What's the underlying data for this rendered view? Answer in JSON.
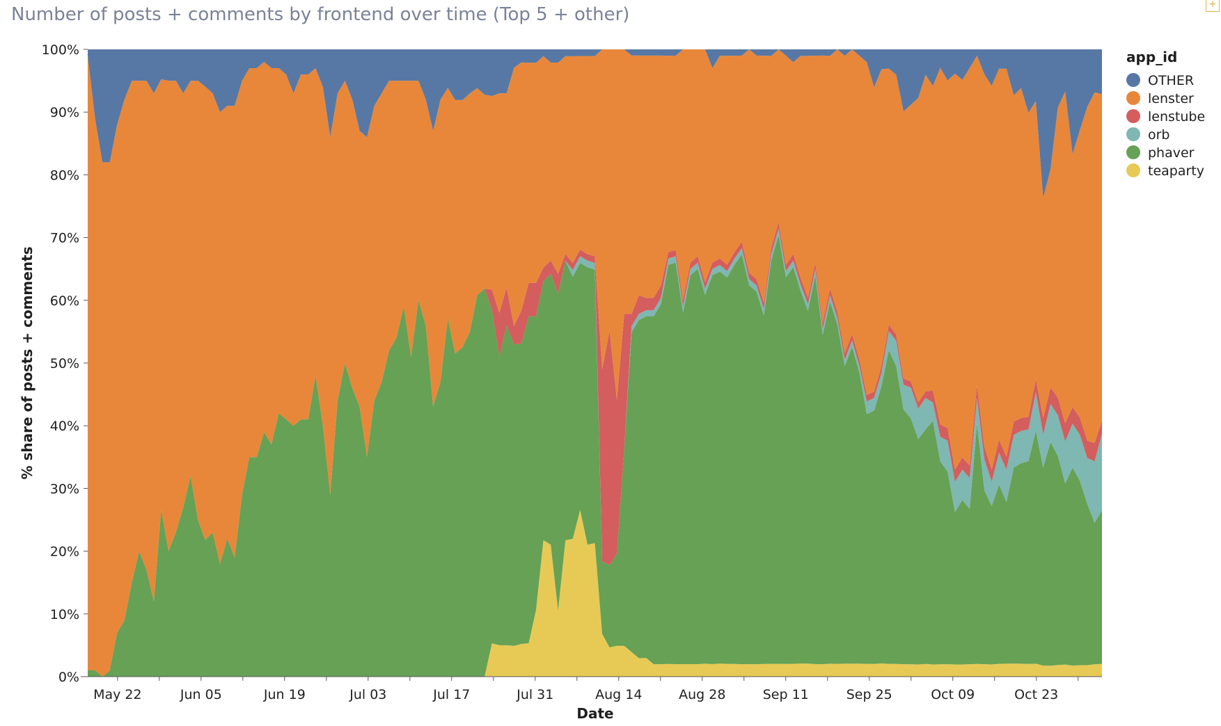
{
  "chart_data": {
    "type": "area",
    "stacked": true,
    "normalized": true,
    "title": "Number of posts + comments by frontend over time (Top 5 + other)",
    "xlabel": "Date",
    "ylabel": "% share of posts + comments",
    "ylim": [
      0,
      100
    ],
    "y_ticks": [
      "0%",
      "10%",
      "20%",
      "30%",
      "40%",
      "50%",
      "60%",
      "70%",
      "80%",
      "90%",
      "100%"
    ],
    "x_tick_labels": [
      "May 22",
      "Jun 05",
      "Jun 19",
      "Jul 03",
      "Jul 17",
      "Jul 31",
      "Aug 14",
      "Aug 28",
      "Sep 11",
      "Sep 25",
      "Oct 09",
      "Oct 23"
    ],
    "x_tick_dates": [
      "2023-05-22",
      "2023-06-05",
      "2023-06-19",
      "2023-07-03",
      "2023-07-17",
      "2023-07-31",
      "2023-08-14",
      "2023-08-28",
      "2023-09-11",
      "2023-09-25",
      "2023-10-09",
      "2023-10-23"
    ],
    "x_start": "2023-05-17",
    "x_end": "2023-11-03",
    "legend_title": "app_id",
    "legend_position": "right",
    "grid": false,
    "stack_order_bottom_to_top": [
      "teaparty",
      "phaver",
      "orb",
      "lenstube",
      "lenster",
      "OTHER"
    ],
    "series": [
      {
        "name": "OTHER",
        "color": "#5778a4",
        "values": [
          1,
          11,
          18,
          18,
          12,
          8,
          5,
          5,
          5,
          7,
          5,
          5,
          5,
          7,
          5,
          5,
          6,
          7,
          10,
          9,
          9,
          5,
          3,
          3,
          2,
          3,
          3,
          4,
          7,
          4,
          4,
          3,
          6,
          14,
          7,
          5,
          8,
          13,
          14,
          9,
          7,
          5,
          5,
          5,
          5,
          5,
          8,
          13,
          8,
          6,
          8,
          8,
          7,
          6,
          7,
          7,
          7,
          7,
          3,
          2,
          2,
          2,
          1,
          2,
          2,
          1,
          1,
          1,
          1,
          1,
          0,
          0,
          0,
          0,
          1,
          1,
          1,
          1,
          1,
          1,
          1,
          0,
          0,
          0,
          0,
          3,
          1,
          1,
          1,
          1,
          0,
          1,
          1,
          1,
          0,
          1,
          2,
          1,
          1,
          1,
          1,
          1,
          0,
          1,
          0,
          1,
          2,
          6,
          3,
          3,
          4,
          10,
          9,
          8,
          4,
          6,
          3,
          5,
          4,
          5,
          3,
          1,
          4,
          6,
          3,
          3,
          7,
          6,
          10,
          8,
          27,
          22,
          10,
          7,
          19,
          14,
          10,
          7,
          7
        ]
      },
      {
        "name": "lenster",
        "color": "#e8873a",
        "values": [
          98,
          88,
          82,
          81,
          81,
          83,
          80,
          75,
          78,
          81,
          72,
          75,
          72,
          66,
          63,
          70,
          73,
          70,
          72,
          69,
          72,
          66,
          62,
          62,
          59,
          60,
          55,
          55,
          53,
          55,
          55,
          49,
          54,
          57,
          49,
          45,
          46,
          44,
          51,
          47,
          46,
          43,
          41,
          36,
          44,
          35,
          36,
          44,
          45,
          36,
          40,
          39,
          38,
          32,
          30,
          29,
          35,
          31,
          42,
          38,
          33,
          33,
          31,
          30,
          32,
          29,
          30,
          29,
          30,
          30,
          75,
          48,
          57,
          43,
          42,
          39,
          39,
          39,
          37,
          31,
          31,
          40,
          34,
          33,
          36,
          31,
          31,
          33,
          31,
          30,
          36,
          36,
          39,
          30,
          27,
          33,
          30,
          34,
          37,
          33,
          43,
          36,
          41,
          46,
          44,
          47,
          52,
          48,
          45,
          40,
          41,
          43,
          45,
          50,
          50,
          50,
          58,
          56,
          65,
          62,
          64,
          52,
          60,
          63,
          58,
          60,
          50,
          51,
          48,
          43,
          40,
          40,
          50,
          55,
          46,
          50,
          58,
          57,
          51
        ]
      },
      {
        "name": "lenstube",
        "color": "#d45d5d",
        "values": [
          0,
          0,
          0,
          0,
          0,
          0,
          0,
          0,
          0,
          0,
          0,
          0,
          0,
          0,
          0,
          0,
          0,
          0,
          0,
          0,
          0,
          0,
          0,
          0,
          0,
          0,
          0,
          0,
          0,
          0,
          0,
          0,
          0,
          0,
          0,
          0,
          0,
          0,
          0,
          0,
          0,
          0,
          0,
          0,
          0,
          0,
          0,
          0,
          0,
          0,
          0,
          0,
          0,
          0,
          0,
          3,
          7,
          6,
          3,
          5,
          5,
          5,
          2,
          2,
          3,
          1,
          1,
          1,
          1,
          1,
          45,
          40,
          25,
          22,
          2,
          3,
          2,
          2,
          2,
          1,
          1,
          1,
          1,
          1,
          1,
          1,
          1,
          1,
          1,
          1,
          1,
          1,
          1,
          1,
          1,
          1,
          1,
          1,
          1,
          1,
          1,
          1,
          1,
          1,
          1,
          1,
          1,
          1,
          1,
          1,
          1,
          1,
          1,
          1,
          1,
          2,
          2,
          2,
          2,
          2,
          2,
          2,
          2,
          2,
          2,
          2,
          2,
          2,
          2,
          2,
          3,
          3,
          3,
          3,
          3,
          3,
          3,
          3,
          2
        ]
      },
      {
        "name": "orb",
        "color": "#7fb7b2",
        "values": [
          0,
          0,
          0,
          0,
          0,
          0,
          0,
          0,
          0,
          0,
          0,
          0,
          0,
          0,
          0,
          0,
          0,
          0,
          0,
          0,
          0,
          0,
          0,
          0,
          0,
          0,
          0,
          0,
          0,
          0,
          0,
          0,
          0,
          0,
          0,
          0,
          0,
          0,
          0,
          0,
          0,
          0,
          0,
          0,
          0,
          0,
          0,
          0,
          0,
          0,
          0,
          0,
          0,
          0,
          0,
          0,
          0,
          0,
          0,
          0,
          0,
          0,
          0,
          0,
          0,
          0,
          1,
          1,
          1,
          1,
          0,
          0,
          0,
          0,
          1,
          1,
          1,
          1,
          1,
          1,
          1,
          1,
          1,
          1,
          1,
          1,
          1,
          1,
          1,
          1,
          1,
          1,
          1,
          1,
          1,
          1,
          1,
          1,
          1,
          1,
          1,
          1,
          1,
          1,
          1,
          1,
          2,
          2,
          2,
          3,
          4,
          4,
          5,
          5,
          5,
          3,
          4,
          5,
          5,
          5,
          5,
          4,
          5,
          4,
          5,
          5,
          5,
          5,
          5,
          6,
          6,
          7,
          7,
          7,
          8,
          8,
          8,
          10,
          12
        ]
      },
      {
        "name": "phaver",
        "color": "#66a155",
        "values": [
          1,
          1,
          0,
          1,
          7,
          9,
          15,
          20,
          17,
          12,
          28,
          20,
          23,
          27,
          32,
          25,
          22,
          23,
          18,
          22,
          19,
          29,
          35,
          35,
          39,
          37,
          42,
          41,
          40,
          41,
          41,
          48,
          40,
          29,
          44,
          50,
          46,
          43,
          35,
          44,
          47,
          52,
          54,
          59,
          51,
          60,
          56,
          43,
          47,
          56,
          51,
          52,
          55,
          59,
          60,
          50,
          46,
          51,
          49,
          46,
          49,
          44,
          38,
          41,
          48,
          41,
          38,
          37,
          42,
          41,
          17,
          14,
          15,
          32,
          52,
          55,
          55,
          56,
          58,
          63,
          64,
          56,
          62,
          63,
          57,
          62,
          60,
          61,
          63,
          66,
          61,
          60,
          55,
          63,
          67,
          61,
          62,
          57,
          54,
          62,
          53,
          56,
          53,
          46,
          49,
          45,
          39,
          40,
          42,
          49,
          47,
          41,
          40,
          37,
          37,
          40,
          33,
          31,
          25,
          27,
          25,
          38,
          28,
          26,
          28,
          25,
          30,
          31,
          32,
          36,
          36,
          41,
          36,
          30,
          36,
          32,
          28,
          23,
          24
        ]
      },
      {
        "name": "teaparty",
        "color": "#e7ca55",
        "values": [
          0,
          0,
          0,
          0,
          0,
          0,
          0,
          0,
          0,
          0,
          0,
          0,
          0,
          0,
          0,
          0,
          0,
          0,
          0,
          0,
          0,
          0,
          0,
          0,
          0,
          0,
          0,
          0,
          0,
          0,
          0,
          0,
          0,
          0,
          0,
          0,
          0,
          0,
          0,
          0,
          0,
          0,
          0,
          0,
          0,
          0,
          0,
          0,
          0,
          0,
          0,
          0,
          0,
          0,
          0,
          5,
          5,
          5,
          5,
          5,
          5,
          10,
          20,
          20,
          10,
          20,
          20,
          25,
          20,
          20,
          10,
          5,
          5,
          5,
          4,
          3,
          3,
          2,
          2,
          2,
          2,
          2,
          2,
          2,
          2,
          2,
          2,
          2,
          2,
          2,
          2,
          2,
          2,
          2,
          2,
          2,
          2,
          2,
          2,
          2,
          2,
          2,
          2,
          2,
          2,
          2,
          2,
          2,
          2,
          2,
          2,
          2,
          2,
          2,
          2,
          2,
          2,
          2,
          2,
          2,
          2,
          2,
          2,
          2,
          2,
          2,
          2,
          2,
          2,
          2,
          2,
          2,
          2,
          2,
          2,
          2,
          2,
          2,
          2
        ]
      }
    ]
  }
}
